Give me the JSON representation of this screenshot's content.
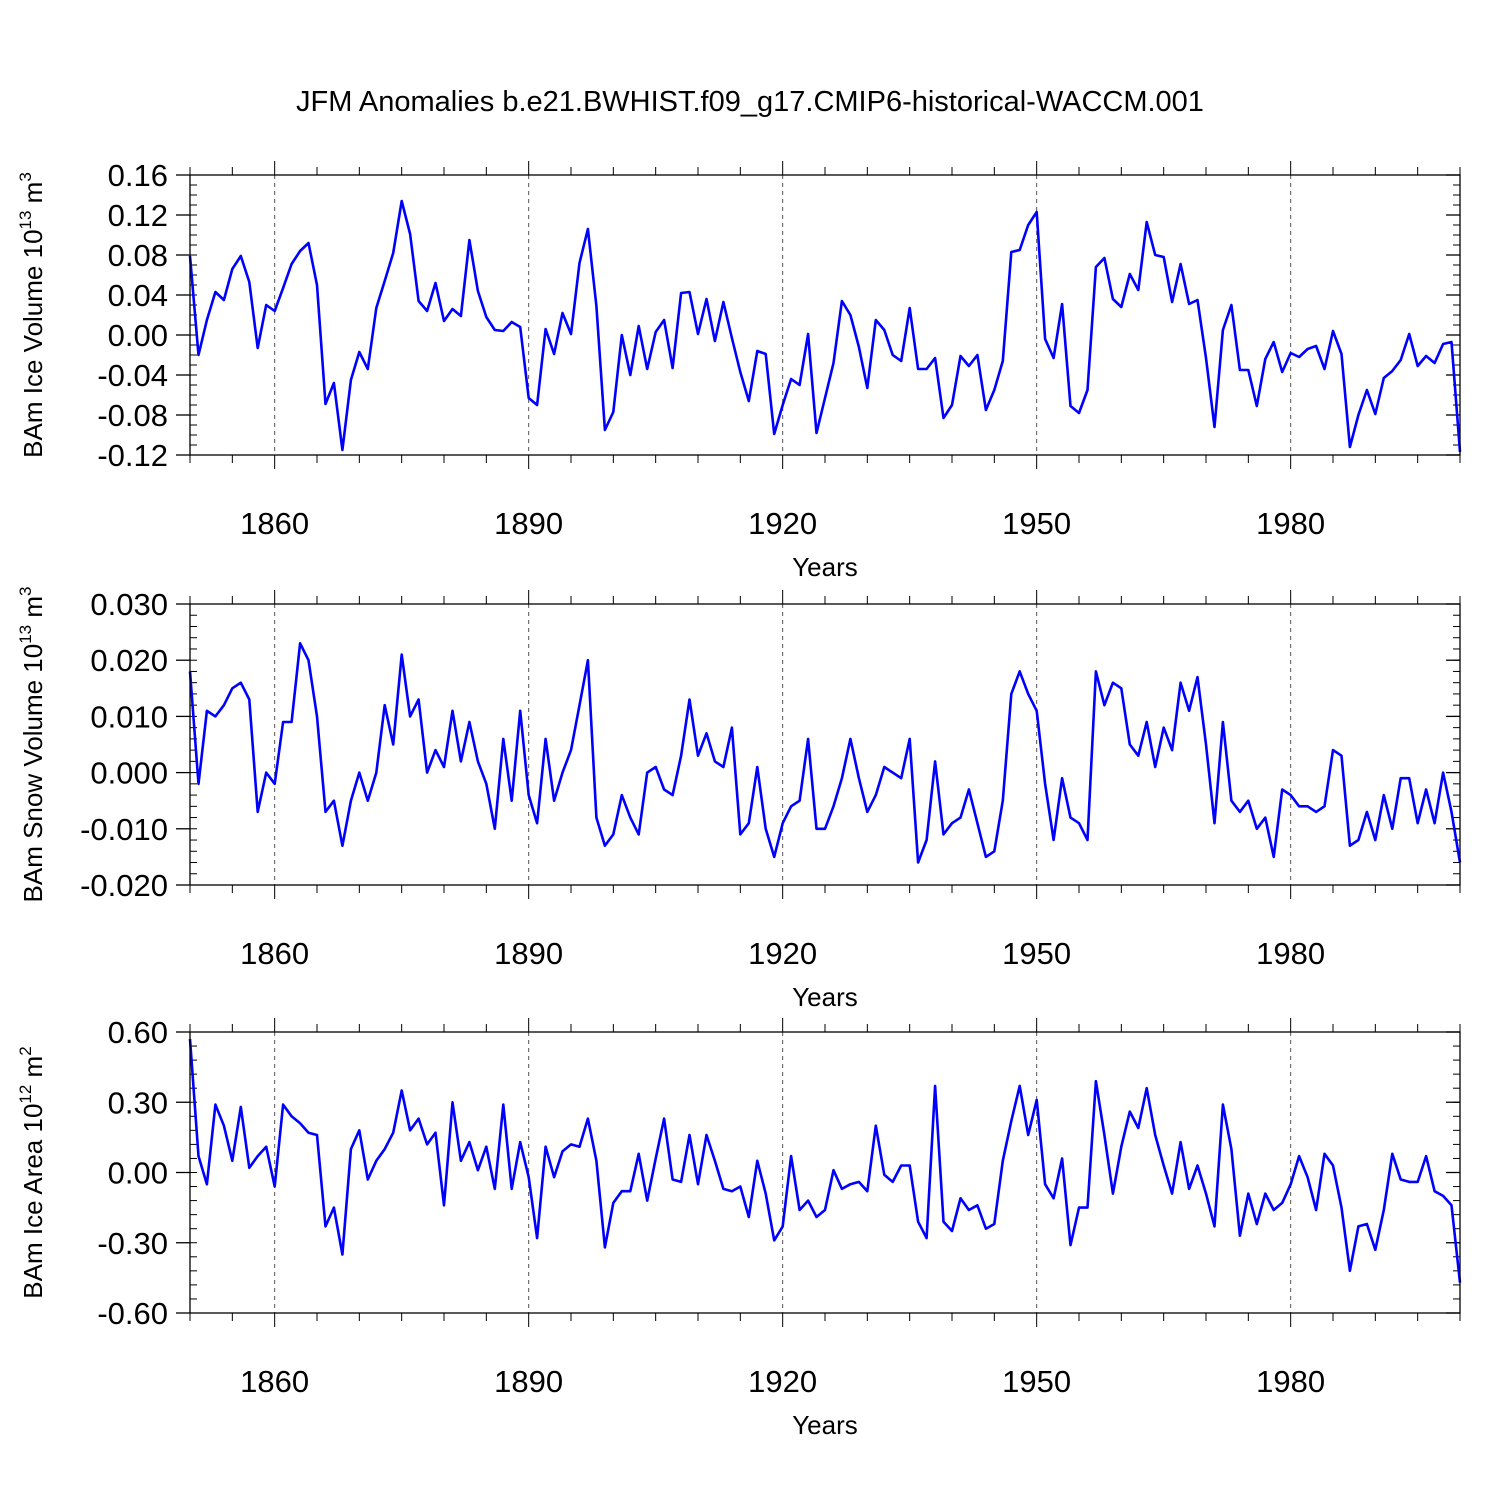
{
  "title": "JFM Anomalies b.e21.BWHIST.f09_g17.CMIP6-historical-WACCM.001",
  "line_color": "#0000ff",
  "chart_data": [
    {
      "type": "line",
      "xlabel": "Years",
      "ylabel": {
        "base": "BAm Ice Volume 10",
        "exp": "13",
        "unit": " m",
        "unit_exp": "3"
      },
      "xlim": [
        1850,
        2000
      ],
      "ylim": [
        -0.12,
        0.16
      ],
      "x_ticks": [
        1860,
        1890,
        1920,
        1950,
        1980
      ],
      "x_tick_labels": [
        "1860",
        "1890",
        "1920",
        "1950",
        "1980"
      ],
      "y_ticks": [
        -0.12,
        -0.08,
        -0.04,
        0.0,
        0.04,
        0.08,
        0.12,
        0.16
      ],
      "y_tick_labels": [
        "-0.12",
        "-0.08",
        "-0.04",
        "0.00",
        "0.04",
        "0.08",
        "0.12",
        "0.16"
      ],
      "y_minor_step": 0.01,
      "x_start": 1850,
      "series": [
        {
          "values": [
            0.079,
            -0.02,
            0.015,
            0.043,
            0.035,
            0.066,
            0.079,
            0.053,
            -0.013,
            0.03,
            0.024,
            0.047,
            0.071,
            0.084,
            0.092,
            0.05,
            -0.069,
            -0.048,
            -0.115,
            -0.045,
            -0.017,
            -0.034,
            0.027,
            0.054,
            0.082,
            0.134,
            0.101,
            0.034,
            0.024,
            0.052,
            0.014,
            0.026,
            0.019,
            0.095,
            0.044,
            0.018,
            0.005,
            0.004,
            0.013,
            0.008,
            -0.063,
            -0.07,
            0.006,
            -0.019,
            0.022,
            0.001,
            0.072,
            0.106,
            0.029,
            -0.095,
            -0.077,
            0.0,
            -0.04,
            0.009,
            -0.034,
            0.003,
            0.015,
            -0.033,
            0.042,
            0.043,
            0.001,
            0.036,
            -0.006,
            0.033,
            -0.003,
            -0.037,
            -0.066,
            -0.016,
            -0.019,
            -0.099,
            -0.07,
            -0.044,
            -0.05,
            0.001,
            -0.098,
            -0.063,
            -0.028,
            0.034,
            0.02,
            -0.012,
            -0.053,
            0.015,
            0.005,
            -0.02,
            -0.026,
            0.027,
            -0.034,
            -0.034,
            -0.023,
            -0.083,
            -0.07,
            -0.021,
            -0.031,
            -0.02,
            -0.075,
            -0.055,
            -0.026,
            0.083,
            0.085,
            0.11,
            0.123,
            -0.004,
            -0.023,
            0.031,
            -0.071,
            -0.078,
            -0.055,
            0.068,
            0.077,
            0.036,
            0.028,
            0.061,
            0.045,
            0.113,
            0.08,
            0.078,
            0.033,
            0.071,
            0.031,
            0.035,
            -0.023,
            -0.092,
            0.005,
            0.03,
            -0.035,
            -0.035,
            -0.071,
            -0.024,
            -0.007,
            -0.037,
            -0.018,
            -0.022,
            -0.014,
            -0.011,
            -0.034,
            0.004,
            -0.019,
            -0.112,
            -0.08,
            -0.055,
            -0.079,
            -0.043,
            -0.036,
            -0.025,
            0.001,
            -0.031,
            -0.021,
            -0.028,
            -0.009,
            -0.007,
            -0.117
          ]
        }
      ]
    },
    {
      "type": "line",
      "xlabel": "Years",
      "ylabel": {
        "base": "BAm Snow Volume 10",
        "exp": "13",
        "unit": " m",
        "unit_exp": "3"
      },
      "xlim": [
        1850,
        2000
      ],
      "ylim": [
        -0.02,
        0.03
      ],
      "x_ticks": [
        1860,
        1890,
        1920,
        1950,
        1980
      ],
      "x_tick_labels": [
        "1860",
        "1890",
        "1920",
        "1950",
        "1980"
      ],
      "y_ticks": [
        -0.02,
        -0.01,
        0.0,
        0.01,
        0.02,
        0.03
      ],
      "y_tick_labels": [
        "-0.020",
        "-0.010",
        "0.000",
        "0.010",
        "0.020",
        "0.030"
      ],
      "y_minor_step": 0.002,
      "x_start": 1850,
      "series": [
        {
          "values": [
            0.018,
            -0.002,
            0.011,
            0.01,
            0.012,
            0.015,
            0.016,
            0.013,
            -0.007,
            0.0,
            -0.002,
            0.009,
            0.009,
            0.023,
            0.02,
            0.01,
            -0.007,
            -0.005,
            -0.013,
            -0.005,
            0.0,
            -0.005,
            0.0,
            0.012,
            0.005,
            0.021,
            0.01,
            0.013,
            0.0,
            0.004,
            0.001,
            0.011,
            0.002,
            0.009,
            0.002,
            -0.002,
            -0.01,
            0.006,
            -0.005,
            0.011,
            -0.004,
            -0.009,
            0.006,
            -0.005,
            0.0,
            0.004,
            0.012,
            0.02,
            -0.008,
            -0.013,
            -0.011,
            -0.004,
            -0.008,
            -0.011,
            0.0,
            0.001,
            -0.003,
            -0.004,
            0.003,
            0.013,
            0.003,
            0.007,
            0.002,
            0.001,
            0.008,
            -0.011,
            -0.009,
            0.001,
            -0.01,
            -0.015,
            -0.009,
            -0.006,
            -0.005,
            0.006,
            -0.01,
            -0.01,
            -0.006,
            -0.001,
            0.006,
            -0.001,
            -0.007,
            -0.004,
            0.001,
            0.0,
            -0.001,
            0.006,
            -0.016,
            -0.012,
            0.002,
            -0.011,
            -0.009,
            -0.008,
            -0.003,
            -0.009,
            -0.015,
            -0.014,
            -0.005,
            0.014,
            0.018,
            0.014,
            0.011,
            -0.002,
            -0.012,
            -0.001,
            -0.008,
            -0.009,
            -0.012,
            0.018,
            0.012,
            0.016,
            0.015,
            0.005,
            0.003,
            0.009,
            0.001,
            0.008,
            0.004,
            0.016,
            0.011,
            0.017,
            0.005,
            -0.009,
            0.009,
            -0.005,
            -0.007,
            -0.005,
            -0.01,
            -0.008,
            -0.015,
            -0.003,
            -0.004,
            -0.006,
            -0.006,
            -0.007,
            -0.006,
            0.004,
            0.003,
            -0.013,
            -0.012,
            -0.007,
            -0.012,
            -0.004,
            -0.01,
            -0.001,
            -0.001,
            -0.009,
            -0.003,
            -0.009,
            0.0,
            -0.007,
            -0.016
          ]
        }
      ]
    },
    {
      "type": "line",
      "xlabel": "Years",
      "ylabel": {
        "base": "BAm Ice Area 10",
        "exp": "12",
        "unit": " m",
        "unit_exp": "2"
      },
      "xlim": [
        1850,
        2000
      ],
      "ylim": [
        -0.6,
        0.6
      ],
      "x_ticks": [
        1860,
        1890,
        1920,
        1950,
        1980
      ],
      "x_tick_labels": [
        "1860",
        "1890",
        "1920",
        "1950",
        "1980"
      ],
      "y_ticks": [
        -0.6,
        -0.3,
        0.0,
        0.3,
        0.6
      ],
      "y_tick_labels": [
        "-0.60",
        "-0.30",
        "0.00",
        "0.30",
        "0.60"
      ],
      "y_minor_step": 0.06,
      "x_start": 1850,
      "series": [
        {
          "values": [
            0.57,
            0.07,
            -0.05,
            0.29,
            0.2,
            0.05,
            0.28,
            0.02,
            0.07,
            0.11,
            -0.06,
            0.29,
            0.24,
            0.21,
            0.17,
            0.16,
            -0.23,
            -0.15,
            -0.35,
            0.1,
            0.18,
            -0.03,
            0.05,
            0.1,
            0.17,
            0.35,
            0.18,
            0.23,
            0.12,
            0.17,
            -0.14,
            0.3,
            0.05,
            0.13,
            0.01,
            0.11,
            -0.07,
            0.29,
            -0.07,
            0.13,
            -0.02,
            -0.28,
            0.11,
            -0.02,
            0.09,
            0.12,
            0.11,
            0.23,
            0.05,
            -0.32,
            -0.13,
            -0.08,
            -0.08,
            0.08,
            -0.12,
            0.06,
            0.23,
            -0.03,
            -0.04,
            0.16,
            -0.05,
            0.16,
            0.05,
            -0.07,
            -0.08,
            -0.06,
            -0.19,
            0.05,
            -0.09,
            -0.29,
            -0.23,
            0.07,
            -0.16,
            -0.12,
            -0.19,
            -0.16,
            0.01,
            -0.07,
            -0.05,
            -0.04,
            -0.08,
            0.2,
            -0.01,
            -0.04,
            0.03,
            0.03,
            -0.21,
            -0.28,
            0.37,
            -0.21,
            -0.25,
            -0.11,
            -0.16,
            -0.14,
            -0.24,
            -0.22,
            0.05,
            0.22,
            0.37,
            0.16,
            0.31,
            -0.05,
            -0.11,
            0.06,
            -0.31,
            -0.15,
            -0.15,
            0.39,
            0.16,
            -0.09,
            0.11,
            0.26,
            0.19,
            0.36,
            0.16,
            0.03,
            -0.09,
            0.13,
            -0.07,
            0.03,
            -0.09,
            -0.23,
            0.29,
            0.1,
            -0.27,
            -0.09,
            -0.22,
            -0.09,
            -0.16,
            -0.13,
            -0.05,
            0.07,
            -0.02,
            -0.16,
            0.08,
            0.03,
            -0.15,
            -0.42,
            -0.23,
            -0.22,
            -0.33,
            -0.16,
            0.08,
            -0.03,
            -0.04,
            -0.04,
            0.07,
            -0.08,
            -0.1,
            -0.14,
            -0.47
          ]
        }
      ]
    }
  ]
}
